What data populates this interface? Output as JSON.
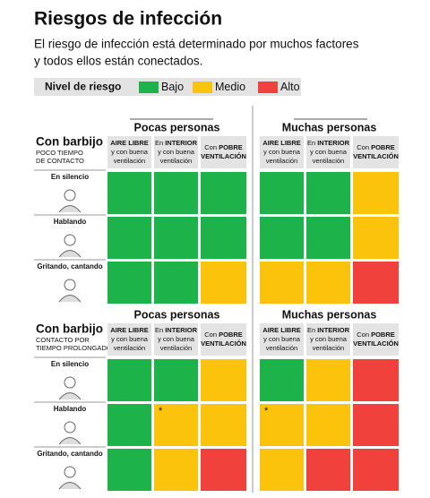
{
  "header": {
    "title": "Riesgos de infección",
    "subtitle_lines": [
      "El riesgo de infección está determinado por muchos factores",
      "y todos ellos están conectados."
    ]
  },
  "legend": {
    "title": "Nivel de riesgo",
    "items": [
      {
        "label": "Bajo",
        "color": "#1db34a"
      },
      {
        "label": "Medio",
        "color": "#fcc30c"
      },
      {
        "label": "Alto",
        "color": "#f0413c"
      }
    ]
  },
  "sections": [
    {
      "title": "Con barbijo",
      "subtitle_lines": [
        "POCO TIEMPO",
        "DE CONTACTO"
      ],
      "groups": [
        {
          "label": "Pocas personas",
          "columns": [
            [
              [
                {
                  "text": "AIRE LIBRE",
                  "bold": true
                }
              ],
              [
                {
                  "text": "y con buena",
                  "bold": false
                }
              ],
              [
                {
                  "text": "ventilación",
                  "bold": false
                }
              ]
            ],
            [
              [
                {
                  "text": "En ",
                  "bold": false
                },
                {
                  "text": "INTERIOR",
                  "bold": true
                }
              ],
              [
                {
                  "text": "y con buena",
                  "bold": false
                }
              ],
              [
                {
                  "text": "ventilación",
                  "bold": false
                }
              ]
            ],
            [
              [
                {
                  "text": "Con ",
                  "bold": false
                },
                {
                  "text": "POBRE",
                  "bold": true
                }
              ],
              [
                {
                  "text": "VENTILACIÓN",
                  "bold": true
                }
              ]
            ]
          ]
        },
        {
          "label": "Muchas personas",
          "columns": [
            [
              [
                {
                  "text": "AIRE LIBRE",
                  "bold": true
                }
              ],
              [
                {
                  "text": "y con buena",
                  "bold": false
                }
              ],
              [
                {
                  "text": "ventilación",
                  "bold": false
                }
              ]
            ],
            [
              [
                {
                  "text": "En ",
                  "bold": false
                },
                {
                  "text": "INTERIOR",
                  "bold": true
                }
              ],
              [
                {
                  "text": "y con buena",
                  "bold": false
                }
              ],
              [
                {
                  "text": "ventilación",
                  "bold": false
                }
              ]
            ],
            [
              [
                {
                  "text": "Con ",
                  "bold": false
                },
                {
                  "text": "POBRE",
                  "bold": true
                }
              ],
              [
                {
                  "text": "VENTILACIÓN",
                  "bold": true
                }
              ]
            ]
          ]
        }
      ],
      "rows": [
        {
          "label": "En silencio",
          "cells": [
            {
              "color": "#1db34a"
            },
            {
              "color": "#1db34a"
            },
            {
              "color": "#1db34a"
            },
            {
              "color": "#1db34a"
            },
            {
              "color": "#1db34a"
            },
            {
              "color": "#fcc30c"
            }
          ]
        },
        {
          "label": "Hablando",
          "cells": [
            {
              "color": "#1db34a"
            },
            {
              "color": "#1db34a"
            },
            {
              "color": "#1db34a"
            },
            {
              "color": "#1db34a"
            },
            {
              "color": "#1db34a"
            },
            {
              "color": "#fcc30c"
            }
          ]
        },
        {
          "label": "Gritando, cantando",
          "cells": [
            {
              "color": "#1db34a"
            },
            {
              "color": "#1db34a"
            },
            {
              "color": "#fcc30c"
            },
            {
              "color": "#fcc30c"
            },
            {
              "color": "#fcc30c"
            },
            {
              "color": "#f0413c"
            }
          ]
        }
      ]
    },
    {
      "title": "Con barbijo",
      "subtitle_lines": [
        "CONTACTO POR",
        "TIEMPO PROLONGADO"
      ],
      "groups": [
        {
          "label": "Pocas personas",
          "columns": [
            [
              [
                {
                  "text": "AIRE LIBRE",
                  "bold": true
                }
              ],
              [
                {
                  "text": "y con buena",
                  "bold": false
                }
              ],
              [
                {
                  "text": "ventilación",
                  "bold": false
                }
              ]
            ],
            [
              [
                {
                  "text": "En ",
                  "bold": false
                },
                {
                  "text": "INTERIOR",
                  "bold": true
                }
              ],
              [
                {
                  "text": "y con buena",
                  "bold": false
                }
              ],
              [
                {
                  "text": "ventilación",
                  "bold": false
                }
              ]
            ],
            [
              [
                {
                  "text": "Con ",
                  "bold": false
                },
                {
                  "text": "POBRE",
                  "bold": true
                }
              ],
              [
                {
                  "text": "VENTILACIÓN",
                  "bold": true
                }
              ]
            ]
          ]
        },
        {
          "label": "Muchas personas",
          "columns": [
            [
              [
                {
                  "text": "AIRE LIBRE",
                  "bold": true
                }
              ],
              [
                {
                  "text": "y con buena",
                  "bold": false
                }
              ],
              [
                {
                  "text": "ventilación",
                  "bold": false
                }
              ]
            ],
            [
              [
                {
                  "text": "En ",
                  "bold": false
                },
                {
                  "text": "INTERIOR",
                  "bold": true
                }
              ],
              [
                {
                  "text": "y con buena",
                  "bold": false
                }
              ],
              [
                {
                  "text": "ventilación",
                  "bold": false
                }
              ]
            ],
            [
              [
                {
                  "text": "Con ",
                  "bold": false
                },
                {
                  "text": "POBRE",
                  "bold": true
                }
              ],
              [
                {
                  "text": "VENTILACIÓN",
                  "bold": true
                }
              ]
            ]
          ]
        }
      ],
      "rows": [
        {
          "label": "En silencio",
          "cells": [
            {
              "color": "#1db34a"
            },
            {
              "color": "#1db34a"
            },
            {
              "color": "#fcc30c"
            },
            {
              "color": "#1db34a"
            },
            {
              "color": "#fcc30c"
            },
            {
              "color": "#f0413c"
            }
          ]
        },
        {
          "label": "Hablando",
          "cells": [
            {
              "color": "#1db34a"
            },
            {
              "color": "#fcc30c",
              "note": "*"
            },
            {
              "color": "#fcc30c"
            },
            {
              "color": "#fcc30c",
              "note": "*"
            },
            {
              "color": "#fcc30c"
            },
            {
              "color": "#f0413c"
            }
          ]
        },
        {
          "label": "Gritando, cantando",
          "cells": [
            {
              "color": "#1db34a"
            },
            {
              "color": "#fcc30c"
            },
            {
              "color": "#f0413c"
            },
            {
              "color": "#fcc30c"
            },
            {
              "color": "#f0413c"
            },
            {
              "color": "#f0413c"
            }
          ]
        }
      ]
    }
  ]
}
